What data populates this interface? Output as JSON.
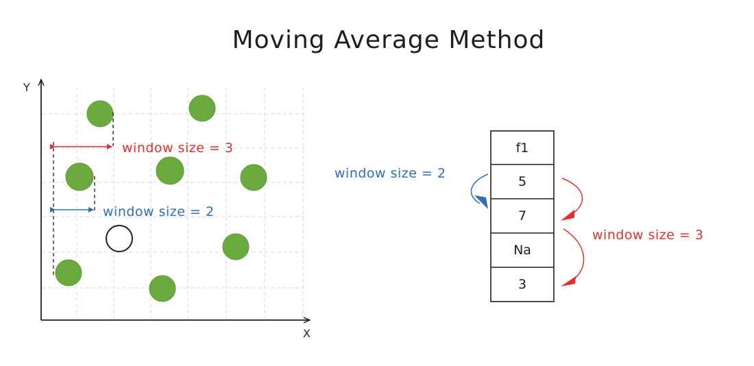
{
  "title": "Moving Average Method",
  "colors": {
    "ink": "#1e1e1e",
    "grid": "#d9d9d9",
    "point_fill": "#6aaa3f",
    "point_stroke": "#5a9a35",
    "red": "#e03131",
    "blue": "#2f6db5"
  },
  "plot": {
    "x_axis_label": "X",
    "y_axis_label": "Y",
    "points": [
      {
        "name": "data-point",
        "filled": true
      },
      {
        "name": "data-point",
        "filled": true
      },
      {
        "name": "data-point",
        "filled": true
      },
      {
        "name": "data-point",
        "filled": true
      },
      {
        "name": "data-point",
        "filled": true
      },
      {
        "name": "data-point",
        "filled": true
      },
      {
        "name": "data-point",
        "filled": true
      },
      {
        "name": "data-point",
        "filled": true
      },
      {
        "name": "missing-point",
        "filled": false
      }
    ],
    "annotation_red": "window size = 3",
    "annotation_blue": "window size = 2"
  },
  "table": {
    "header": "f1",
    "values": [
      "5",
      "7",
      "Na",
      "3"
    ],
    "annotation_blue": "window size = 2",
    "annotation_red": "window size = 3"
  }
}
